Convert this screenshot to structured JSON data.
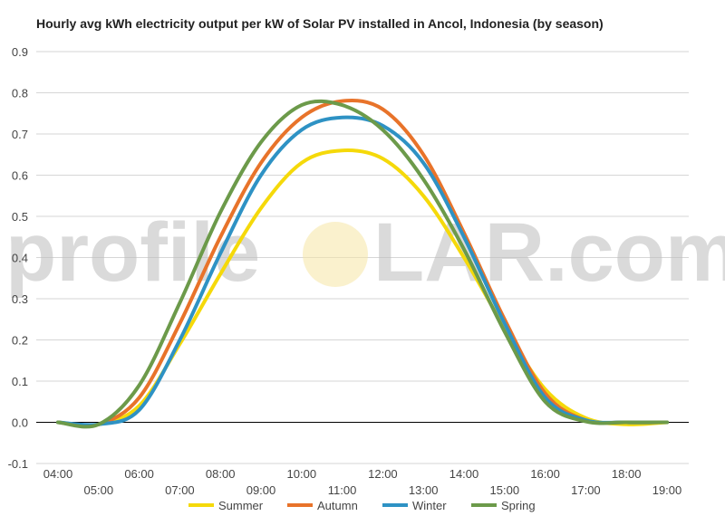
{
  "chart_data": {
    "type": "line",
    "title": "Hourly avg kWh electricity output per kW of Solar PV installed in Ancol, Indonesia (by season)",
    "xlabel": "",
    "ylabel": "",
    "x": [
      "04:00",
      "05:00",
      "06:00",
      "07:00",
      "08:00",
      "09:00",
      "10:00",
      "11:00",
      "12:00",
      "13:00",
      "14:00",
      "15:00",
      "16:00",
      "17:00",
      "18:00",
      "19:00"
    ],
    "ylim": [
      -0.1,
      0.9
    ],
    "yticks": [
      "-0.1",
      "0.0",
      "0.1",
      "0.2",
      "0.3",
      "0.4",
      "0.5",
      "0.6",
      "0.7",
      "0.8",
      "0.9"
    ],
    "grid": true,
    "legend": "bottom",
    "series": [
      {
        "name": "Summer",
        "color": "#f5d90a",
        "values": [
          0.0,
          -0.005,
          0.04,
          0.19,
          0.36,
          0.52,
          0.63,
          0.66,
          0.64,
          0.55,
          0.4,
          0.23,
          0.08,
          0.01,
          -0.005,
          0.0
        ]
      },
      {
        "name": "Autumn",
        "color": "#e8732a",
        "values": [
          0.0,
          -0.005,
          0.06,
          0.24,
          0.45,
          0.63,
          0.74,
          0.78,
          0.76,
          0.65,
          0.46,
          0.25,
          0.07,
          0.005,
          0.0,
          0.0
        ]
      },
      {
        "name": "Winter",
        "color": "#2e92c4",
        "values": [
          0.0,
          -0.005,
          0.03,
          0.2,
          0.41,
          0.6,
          0.71,
          0.74,
          0.72,
          0.63,
          0.45,
          0.24,
          0.06,
          0.005,
          0.0,
          0.0
        ]
      },
      {
        "name": "Spring",
        "color": "#6c9a4a",
        "values": [
          0.0,
          -0.005,
          0.09,
          0.29,
          0.51,
          0.68,
          0.77,
          0.77,
          0.71,
          0.59,
          0.42,
          0.22,
          0.05,
          0.002,
          0.0,
          0.0
        ]
      }
    ]
  },
  "watermark": {
    "left": "profile",
    "right": "LAR.com"
  }
}
